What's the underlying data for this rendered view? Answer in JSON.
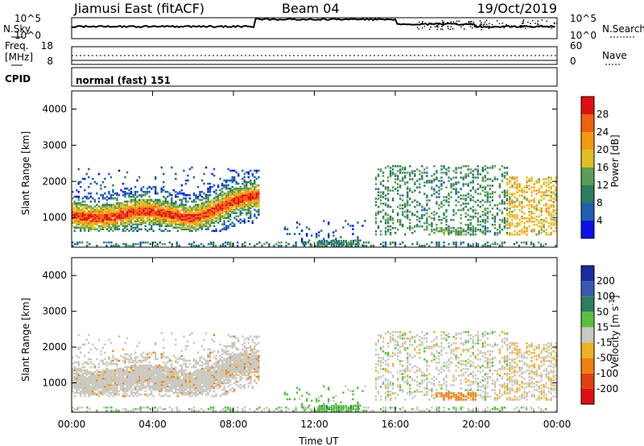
{
  "header": {
    "title": "Jiamusi East (fitACF)",
    "beam": "Beam 04",
    "date": "19/Oct/2019"
  },
  "panels": {
    "nsky_label": "N.Sky",
    "nsky_tick_top": "10^5",
    "nsky_tick_bottom": "10^0",
    "nsearch_label": "N.Search",
    "freq_label_1": "Freq.",
    "freq_label_2": "[MHz]",
    "freq_ticks": [
      "18",
      "8"
    ],
    "nave_label": "Nave",
    "nave_ticks": [
      "60",
      "0"
    ],
    "cpid_label": "CPID",
    "cpid_text": "normal (fast) 151"
  },
  "axes": {
    "xlabel": "Time UT",
    "xticks": [
      "00:00",
      "04:00",
      "08:00",
      "12:00",
      "16:00",
      "20:00",
      "00:00"
    ],
    "ylabel": "Slant Range [km]",
    "yticks": [
      "1000",
      "2000",
      "3000",
      "4000"
    ]
  },
  "colorbars": {
    "power": {
      "label": "Power [dB]",
      "ticks": [
        "4",
        "8",
        "12",
        "16",
        "20",
        "24",
        "28"
      ],
      "colors": [
        "#0a10e8",
        "#1f5fb0",
        "#2d7d5e",
        "#5a9e56",
        "#e0c020",
        "#f39b10",
        "#f06010",
        "#e01010"
      ]
    },
    "velocity": {
      "label_main": "Velocity [m s",
      "label_exp": "-1",
      "label_end": "]",
      "ticks": [
        "200",
        "100",
        "50",
        "15",
        "-15",
        "-50",
        "-100",
        "-200"
      ],
      "colors": [
        "#1a2aa0",
        "#3a5ab0",
        "#2d7d5e",
        "#5ac040",
        "#c8c8c0",
        "#f0b020",
        "#f08010",
        "#e04010",
        "#e01010"
      ]
    }
  },
  "chart_data": [
    {
      "type": "heatmap",
      "title": "Power [dB]",
      "xlabel": "Time UT",
      "ylabel": "Slant Range [km]",
      "xlim": [
        "00:00",
        "24:00"
      ],
      "ylim": [
        180,
        4500
      ],
      "clim": [
        0,
        30
      ],
      "features": [
        {
          "desc_time": [
            "00:00",
            "09:00"
          ],
          "range_km": [
            700,
            1400
          ],
          "peak_db": 28
        },
        {
          "desc_time": [
            "00:00",
            "09:00"
          ],
          "range_km": [
            1400,
            2300
          ],
          "peak_db": 8
        },
        {
          "desc_time": [
            "15:00",
            "21:30"
          ],
          "range_km": [
            500,
            2400
          ],
          "peak_db": 14
        },
        {
          "desc_time": [
            "22:00",
            "24:00"
          ],
          "range_km": [
            600,
            2000
          ],
          "peak_db": 24
        }
      ]
    },
    {
      "type": "heatmap",
      "title": "Velocity [m s-1]",
      "xlabel": "Time UT",
      "ylabel": "Slant Range [km]",
      "xlim": [
        "00:00",
        "24:00"
      ],
      "ylim": [
        180,
        4500
      ],
      "clim": [
        -200,
        200
      ],
      "features": [
        {
          "desc_time": [
            "00:00",
            "09:00"
          ],
          "range_km": [
            800,
            1600
          ],
          "velocity": 0
        },
        {
          "desc_time": [
            "12:30",
            "14:30"
          ],
          "range_km": [
            200,
            400
          ],
          "velocity": 30
        },
        {
          "desc_time": [
            "18:00",
            "20:00"
          ],
          "range_km": [
            500,
            700
          ],
          "velocity": -60
        }
      ]
    }
  ]
}
